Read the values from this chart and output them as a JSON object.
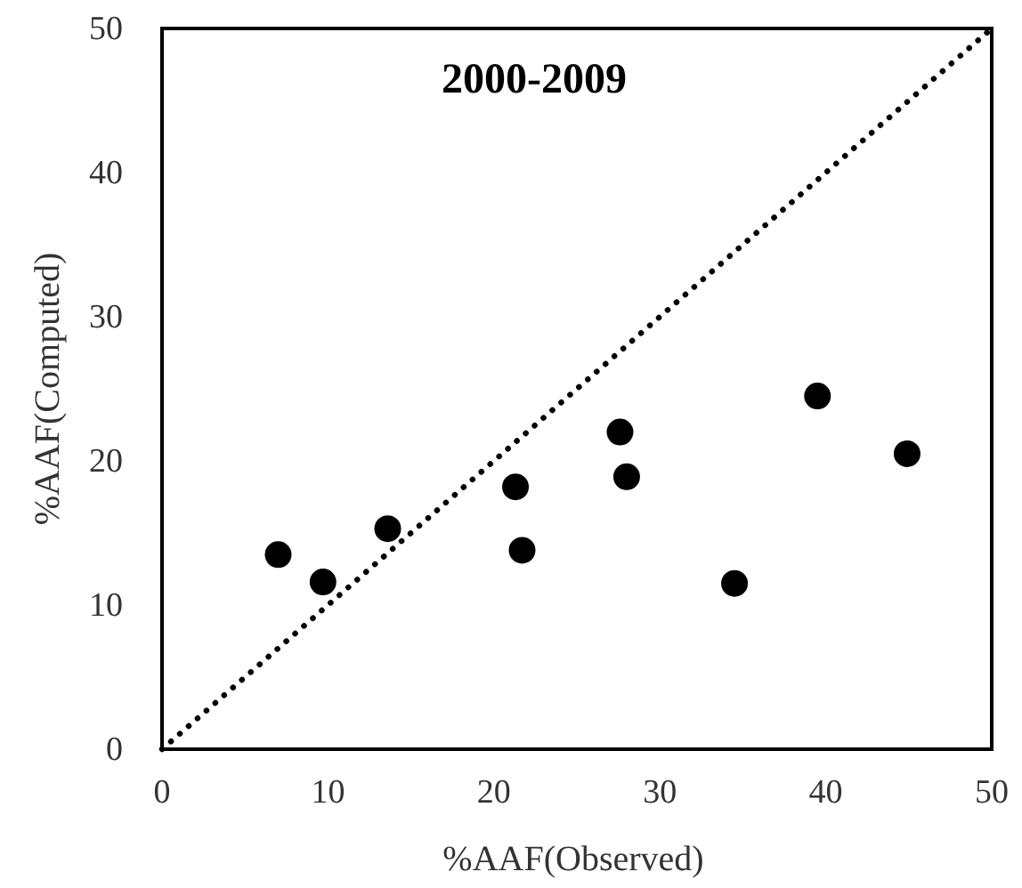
{
  "chart_data": {
    "type": "scatter",
    "title": "2000-2009",
    "xlabel": "%AAF(Observed)",
    "ylabel": "%AAF(Computed)",
    "xlim": [
      0,
      50
    ],
    "ylim": [
      0,
      50
    ],
    "xticks": [
      0,
      10,
      20,
      30,
      40,
      50
    ],
    "yticks": [
      0,
      10,
      20,
      30,
      40,
      50
    ],
    "grid": false,
    "marker": "circle",
    "series": [
      {
        "color": "#000000",
        "x": [
          7.0,
          9.7,
          13.6,
          21.3,
          21.7,
          27.6,
          28.0,
          34.5,
          39.5,
          44.9
        ],
        "values": [
          13.5,
          11.6,
          15.3,
          18.2,
          13.8,
          22.0,
          18.9,
          11.5,
          24.5,
          20.5
        ]
      },
      {
        "type": "line",
        "color": "#000000",
        "line_style": "dotted",
        "marker": "none",
        "x": [
          0,
          50
        ],
        "values": [
          0,
          50
        ]
      }
    ]
  }
}
